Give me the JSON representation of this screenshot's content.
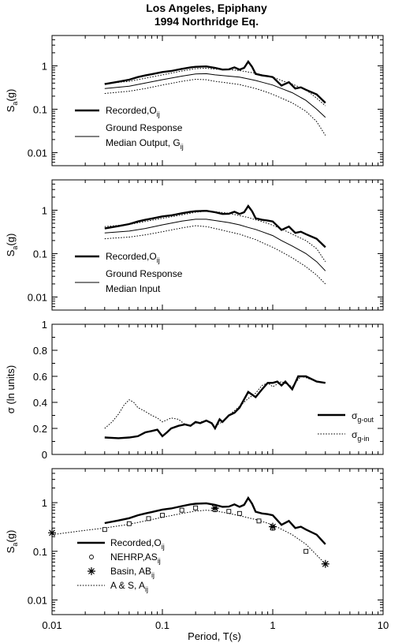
{
  "title": {
    "line1": "Los Angeles, Epiphany",
    "line2": "1994 Northridge Eq."
  },
  "xlabel": "Period, T(s)",
  "x_ticks": [
    "0.01",
    "0.1",
    "1",
    "10"
  ],
  "chart_data": [
    {
      "id": "p1",
      "type": "line",
      "ylabel": "Sa(g)",
      "yscale": "log",
      "xscale": "log",
      "xlim": [
        0.01,
        10
      ],
      "ylim": [
        0.005,
        5
      ],
      "y_ticks": [
        "0.01",
        "0.1",
        "1"
      ],
      "legend": [
        {
          "text": "Recorded,Oij",
          "style": "thick"
        },
        {
          "text": "Ground Response",
          "text2": "Median Output, Gij",
          "style": "thin"
        }
      ],
      "series": [
        {
          "name": "Recorded,Oij",
          "style": "thick",
          "x": [
            0.03,
            0.04,
            0.05,
            0.06,
            0.07,
            0.08,
            0.1,
            0.12,
            0.15,
            0.18,
            0.2,
            0.25,
            0.3,
            0.35,
            0.4,
            0.45,
            0.5,
            0.55,
            0.6,
            0.65,
            0.7,
            0.8,
            0.9,
            1.0,
            1.2,
            1.4,
            1.6,
            1.8,
            2.0,
            2.5,
            3.0
          ],
          "y": [
            0.38,
            0.43,
            0.48,
            0.55,
            0.6,
            0.64,
            0.72,
            0.76,
            0.85,
            0.92,
            0.95,
            0.97,
            0.9,
            0.82,
            0.83,
            0.92,
            0.82,
            0.9,
            1.25,
            0.95,
            0.65,
            0.6,
            0.58,
            0.55,
            0.35,
            0.42,
            0.3,
            0.32,
            0.28,
            0.22,
            0.14
          ]
        },
        {
          "style": "thin",
          "x": [
            0.03,
            0.05,
            0.07,
            0.1,
            0.15,
            0.2,
            0.25,
            0.3,
            0.4,
            0.5,
            0.6,
            0.7,
            0.8,
            1.0,
            1.2,
            1.5,
            2.0,
            2.5,
            3.0
          ],
          "y": [
            0.3,
            0.34,
            0.4,
            0.48,
            0.58,
            0.65,
            0.66,
            0.62,
            0.58,
            0.55,
            0.5,
            0.46,
            0.42,
            0.36,
            0.3,
            0.24,
            0.16,
            0.1,
            0.065
          ]
        },
        {
          "style": "dotted",
          "x": [
            0.03,
            0.05,
            0.07,
            0.1,
            0.15,
            0.2,
            0.25,
            0.3,
            0.4,
            0.5,
            0.6,
            0.7,
            0.8,
            1.0,
            1.2,
            1.5,
            2.0,
            2.5,
            3.0
          ],
          "y": [
            0.39,
            0.44,
            0.52,
            0.62,
            0.76,
            0.86,
            0.88,
            0.84,
            0.82,
            0.78,
            0.72,
            0.68,
            0.62,
            0.55,
            0.46,
            0.38,
            0.28,
            0.18,
            0.12
          ]
        },
        {
          "style": "dotted",
          "x": [
            0.03,
            0.05,
            0.07,
            0.1,
            0.15,
            0.2,
            0.25,
            0.3,
            0.4,
            0.5,
            0.6,
            0.7,
            0.8,
            1.0,
            1.2,
            1.5,
            2.0,
            2.5,
            3.0
          ],
          "y": [
            0.23,
            0.26,
            0.3,
            0.36,
            0.44,
            0.49,
            0.48,
            0.44,
            0.4,
            0.37,
            0.33,
            0.3,
            0.27,
            0.22,
            0.18,
            0.14,
            0.09,
            0.052,
            0.025
          ]
        }
      ]
    },
    {
      "id": "p2",
      "type": "line",
      "ylabel": "Sa(g)",
      "yscale": "log",
      "xscale": "log",
      "xlim": [
        0.01,
        10
      ],
      "ylim": [
        0.005,
        5
      ],
      "y_ticks": [
        "0.01",
        "0.1",
        "1"
      ],
      "legend": [
        {
          "text": "Recorded,Oij",
          "style": "thick"
        },
        {
          "text": "Ground Response",
          "text2": "Median Input",
          "style": "thin"
        }
      ],
      "series": [
        {
          "name": "Recorded,Oij",
          "style": "thick",
          "x": [
            0.03,
            0.04,
            0.05,
            0.06,
            0.07,
            0.08,
            0.1,
            0.12,
            0.15,
            0.18,
            0.2,
            0.25,
            0.3,
            0.35,
            0.4,
            0.45,
            0.5,
            0.55,
            0.6,
            0.65,
            0.7,
            0.8,
            0.9,
            1.0,
            1.2,
            1.4,
            1.6,
            1.8,
            2.0,
            2.5,
            3.0
          ],
          "y": [
            0.38,
            0.43,
            0.48,
            0.55,
            0.6,
            0.64,
            0.72,
            0.76,
            0.85,
            0.92,
            0.95,
            0.97,
            0.9,
            0.82,
            0.83,
            0.92,
            0.82,
            0.9,
            1.25,
            0.95,
            0.65,
            0.6,
            0.58,
            0.55,
            0.35,
            0.42,
            0.3,
            0.32,
            0.28,
            0.22,
            0.14
          ]
        },
        {
          "style": "thin",
          "x": [
            0.03,
            0.05,
            0.07,
            0.1,
            0.15,
            0.2,
            0.25,
            0.3,
            0.4,
            0.5,
            0.6,
            0.7,
            0.8,
            1.0,
            1.2,
            1.5,
            2.0,
            2.5,
            3.0
          ],
          "y": [
            0.3,
            0.33,
            0.38,
            0.46,
            0.56,
            0.62,
            0.62,
            0.58,
            0.52,
            0.46,
            0.4,
            0.36,
            0.32,
            0.26,
            0.2,
            0.15,
            0.1,
            0.065,
            0.04
          ]
        },
        {
          "style": "dotted",
          "x": [
            0.03,
            0.05,
            0.07,
            0.1,
            0.15,
            0.2,
            0.25,
            0.3,
            0.4,
            0.5,
            0.6,
            0.7,
            0.8,
            1.0,
            1.2,
            1.5,
            2.0,
            2.5,
            3.0
          ],
          "y": [
            0.42,
            0.47,
            0.55,
            0.65,
            0.78,
            0.9,
            0.95,
            0.92,
            0.85,
            0.75,
            0.68,
            0.6,
            0.55,
            0.45,
            0.37,
            0.28,
            0.2,
            0.13,
            0.065
          ]
        },
        {
          "style": "dotted",
          "x": [
            0.03,
            0.05,
            0.07,
            0.1,
            0.15,
            0.2,
            0.25,
            0.3,
            0.4,
            0.5,
            0.6,
            0.7,
            0.8,
            1.0,
            1.2,
            1.5,
            2.0,
            2.5,
            3.0
          ],
          "y": [
            0.22,
            0.24,
            0.27,
            0.32,
            0.39,
            0.44,
            0.42,
            0.38,
            0.32,
            0.28,
            0.24,
            0.21,
            0.18,
            0.14,
            0.11,
            0.08,
            0.05,
            0.032,
            0.02
          ]
        }
      ]
    },
    {
      "id": "p3",
      "type": "line",
      "ylabel": "σ (ln units)",
      "yscale": "linear",
      "xscale": "log",
      "xlim": [
        0.01,
        10
      ],
      "ylim": [
        0,
        1
      ],
      "y_ticks": [
        "0",
        "0.2",
        "0.4",
        "0.6",
        "0.8",
        "1"
      ],
      "legend": [
        {
          "sym": "σ",
          "sub": "g-out",
          "style": "thick"
        },
        {
          "sym": "σ",
          "sub": "g-in",
          "style": "dotted"
        }
      ],
      "series": [
        {
          "name": "σg-out",
          "style": "thick",
          "x": [
            0.03,
            0.04,
            0.05,
            0.06,
            0.07,
            0.08,
            0.09,
            0.1,
            0.11,
            0.12,
            0.14,
            0.16,
            0.18,
            0.2,
            0.22,
            0.25,
            0.28,
            0.3,
            0.33,
            0.35,
            0.4,
            0.45,
            0.5,
            0.6,
            0.7,
            0.8,
            0.9,
            1.0,
            1.1,
            1.2,
            1.3,
            1.5,
            1.7,
            2.0,
            2.5,
            3.0
          ],
          "y": [
            0.13,
            0.125,
            0.13,
            0.14,
            0.17,
            0.18,
            0.19,
            0.14,
            0.17,
            0.2,
            0.22,
            0.23,
            0.22,
            0.25,
            0.24,
            0.26,
            0.24,
            0.2,
            0.27,
            0.25,
            0.3,
            0.32,
            0.36,
            0.48,
            0.44,
            0.5,
            0.55,
            0.55,
            0.56,
            0.53,
            0.56,
            0.5,
            0.6,
            0.6,
            0.56,
            0.55
          ]
        },
        {
          "name": "σg-in",
          "style": "dotted",
          "x": [
            0.03,
            0.035,
            0.04,
            0.045,
            0.05,
            0.055,
            0.06,
            0.07,
            0.08,
            0.09,
            0.1,
            0.12,
            0.14,
            0.16,
            0.18,
            0.2,
            0.25,
            0.3,
            0.35,
            0.4,
            0.5,
            0.6,
            0.7,
            0.8,
            0.9,
            1.0,
            1.2,
            1.5,
            1.8,
            2.0,
            2.5,
            3.0
          ],
          "y": [
            0.2,
            0.25,
            0.31,
            0.38,
            0.42,
            0.4,
            0.36,
            0.33,
            0.3,
            0.28,
            0.25,
            0.28,
            0.27,
            0.23,
            0.22,
            0.24,
            0.26,
            0.22,
            0.25,
            0.3,
            0.37,
            0.43,
            0.47,
            0.53,
            0.55,
            0.52,
            0.56,
            0.52,
            0.6,
            0.59,
            0.56,
            0.55
          ]
        }
      ]
    },
    {
      "id": "p4",
      "type": "line",
      "ylabel": "Sa(g)",
      "yscale": "log",
      "xscale": "log",
      "xlim": [
        0.01,
        10
      ],
      "ylim": [
        0.005,
        5
      ],
      "y_ticks": [
        "0.01",
        "0.1",
        "1"
      ],
      "legend": [
        {
          "text": "Recorded,Oij",
          "style": "thick"
        },
        {
          "text": "NEHRP,ASij",
          "style": "circle"
        },
        {
          "text": "Basin, ABij",
          "style": "star"
        },
        {
          "text": "A & S, Aij",
          "style": "dotted"
        }
      ],
      "series": [
        {
          "name": "Recorded,Oij",
          "style": "thick",
          "x": [
            0.03,
            0.04,
            0.05,
            0.06,
            0.07,
            0.08,
            0.1,
            0.12,
            0.15,
            0.18,
            0.2,
            0.25,
            0.3,
            0.35,
            0.4,
            0.45,
            0.5,
            0.55,
            0.6,
            0.65,
            0.7,
            0.8,
            0.9,
            1.0,
            1.2,
            1.4,
            1.6,
            1.8,
            2.0,
            2.5,
            3.0
          ],
          "y": [
            0.38,
            0.43,
            0.48,
            0.55,
            0.6,
            0.64,
            0.72,
            0.76,
            0.85,
            0.92,
            0.95,
            0.97,
            0.9,
            0.82,
            0.83,
            0.92,
            0.82,
            0.9,
            1.25,
            0.95,
            0.65,
            0.6,
            0.58,
            0.55,
            0.35,
            0.42,
            0.3,
            0.32,
            0.28,
            0.22,
            0.14
          ]
        },
        {
          "name": "A & S, Aij",
          "style": "dotted",
          "x": [
            0.01,
            0.02,
            0.03,
            0.05,
            0.07,
            0.1,
            0.15,
            0.2,
            0.25,
            0.3,
            0.4,
            0.5,
            0.7,
            1.0,
            1.5,
            2.0,
            3.0
          ],
          "y": [
            0.22,
            0.27,
            0.3,
            0.36,
            0.42,
            0.5,
            0.6,
            0.67,
            0.7,
            0.68,
            0.6,
            0.54,
            0.45,
            0.35,
            0.22,
            0.14,
            0.055
          ]
        },
        {
          "name": "NEHRP,ASij",
          "style": "squares",
          "x": [
            0.03,
            0.05,
            0.075,
            0.1,
            0.15,
            0.2,
            0.3,
            0.4,
            0.5,
            0.75,
            1.0,
            2.0
          ],
          "y": [
            0.28,
            0.37,
            0.47,
            0.55,
            0.7,
            0.78,
            0.72,
            0.66,
            0.6,
            0.42,
            0.3,
            0.1
          ]
        },
        {
          "name": "Basin, ABij",
          "style": "stars",
          "x": [
            0.01,
            0.3,
            1.0,
            3.0
          ],
          "y": [
            0.24,
            0.77,
            0.32,
            0.055
          ]
        }
      ]
    }
  ]
}
